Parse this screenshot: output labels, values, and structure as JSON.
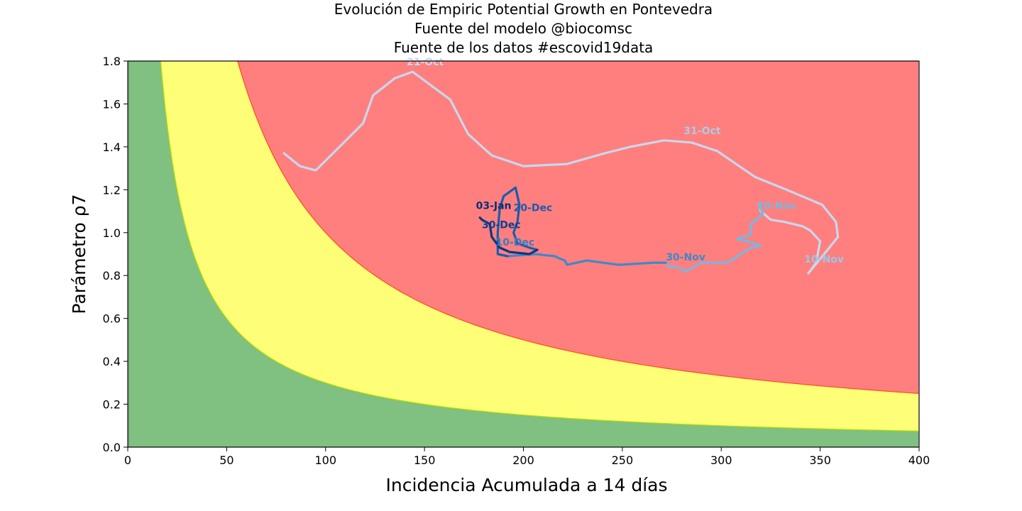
{
  "chart_data": {
    "type": "line",
    "title_lines": [
      "Evolución de Empiric Potential Growth en Pontevedra",
      "Fuente del modelo @biocomsc",
      "Fuente de los datos #escovid19data"
    ],
    "xlabel": "Incidencia Acumulada a 14 días",
    "ylabel": "Parámetro ρ7",
    "xlim": [
      0,
      400
    ],
    "ylim": [
      0,
      1.8
    ],
    "xticks": [
      0,
      50,
      100,
      150,
      200,
      250,
      300,
      350,
      400
    ],
    "yticks": [
      0.0,
      0.2,
      0.4,
      0.6,
      0.8,
      1.0,
      1.2,
      1.4,
      1.6,
      1.8
    ],
    "ytick_labels": [
      "0.0",
      "0.2",
      "0.4",
      "0.6",
      "0.8",
      "1.0",
      "1.2",
      "1.4",
      "1.6",
      "1.8"
    ],
    "grid": false,
    "zones": [
      {
        "color": "#80c080",
        "k": 0
      },
      {
        "color": "#ffff77",
        "k": 30
      },
      {
        "color": "#ff7f7f",
        "k": 100
      }
    ],
    "zone_edges": [
      "#b8e000",
      "#ff4a20"
    ],
    "segments": [
      {
        "color": "#c8d8ec",
        "points": [
          [
            79,
            1.37
          ],
          [
            87,
            1.31
          ],
          [
            95,
            1.29
          ],
          [
            107,
            1.4
          ],
          [
            119,
            1.51
          ],
          [
            124,
            1.64
          ],
          [
            135,
            1.72
          ],
          [
            144,
            1.75
          ],
          [
            163,
            1.62
          ],
          [
            172,
            1.46
          ],
          [
            184,
            1.36
          ],
          [
            200,
            1.31
          ],
          [
            222,
            1.32
          ],
          [
            241,
            1.37
          ],
          [
            254,
            1.4
          ],
          [
            271,
            1.43
          ],
          [
            285,
            1.42
          ],
          [
            298,
            1.38
          ],
          [
            317,
            1.26
          ],
          [
            333,
            1.2
          ],
          [
            351,
            1.13
          ],
          [
            358,
            1.05
          ],
          [
            359,
            0.98
          ],
          [
            352,
            0.9
          ],
          [
            344,
            0.81
          ],
          [
            348,
            0.86
          ],
          [
            350,
            0.96
          ],
          [
            345,
            1.01
          ],
          [
            341,
            1.03
          ],
          [
            332,
            1.05
          ],
          [
            325,
            1.06
          ],
          [
            320,
            1.1
          ],
          [
            319,
            1.13
          ]
        ]
      },
      {
        "color": "#7ab6e0",
        "points": [
          [
            319,
            1.13
          ],
          [
            321,
            1.09
          ],
          [
            318,
            1.06
          ],
          [
            315,
            1.04
          ],
          [
            315,
            0.99
          ],
          [
            308,
            0.97
          ],
          [
            313,
            0.96
          ],
          [
            320,
            0.94
          ],
          [
            315,
            0.93
          ],
          [
            303,
            0.86
          ],
          [
            290,
            0.86
          ],
          [
            282,
            0.82
          ],
          [
            278,
            0.84
          ],
          [
            274,
            0.84
          ],
          [
            272,
            0.86
          ]
        ]
      },
      {
        "color": "#4088c8",
        "points": [
          [
            272,
            0.86
          ],
          [
            266,
            0.86
          ],
          [
            248,
            0.85
          ],
          [
            232,
            0.87
          ],
          [
            222,
            0.85
          ],
          [
            221,
            0.87
          ],
          [
            218,
            0.88
          ],
          [
            216,
            0.89
          ],
          [
            206,
            0.9
          ],
          [
            192,
            0.89
          ]
        ]
      },
      {
        "color": "#1c5cac",
        "points": [
          [
            192,
            0.89
          ],
          [
            187,
            0.9
          ],
          [
            187,
            1.0
          ],
          [
            188,
            1.11
          ],
          [
            190,
            1.17
          ],
          [
            196,
            1.21
          ],
          [
            198,
            1.13
          ],
          [
            197,
            1.05
          ],
          [
            195,
            1.0
          ],
          [
            197,
            0.95
          ],
          [
            203,
            0.93
          ],
          [
            207,
            0.92
          ]
        ]
      },
      {
        "color": "#0a3880",
        "points": [
          [
            207,
            0.92
          ],
          [
            203,
            0.9
          ],
          [
            193,
            0.91
          ],
          [
            188,
            0.93
          ],
          [
            184,
            0.98
          ],
          [
            183,
            1.04
          ],
          [
            179,
            1.06
          ],
          [
            178,
            1.07
          ]
        ]
      }
    ],
    "annotations": [
      {
        "text": "21-Oct",
        "x": 141,
        "y": 1.78,
        "color": "#c8d8ec"
      },
      {
        "text": "31-Oct",
        "x": 281,
        "y": 1.46,
        "color": "#aacbe6"
      },
      {
        "text": "10-Nov",
        "x": 342,
        "y": 0.86,
        "color": "#9cc6e6"
      },
      {
        "text": "20-Nov",
        "x": 318,
        "y": 1.11,
        "color": "#7ab6e0"
      },
      {
        "text": "30-Nov",
        "x": 272,
        "y": 0.87,
        "color": "#4088c8"
      },
      {
        "text": "10-Dec",
        "x": 186,
        "y": 0.94,
        "color": "#3a7cc0"
      },
      {
        "text": "20-Dec",
        "x": 195,
        "y": 1.1,
        "color": "#1c5cac"
      },
      {
        "text": "30-Dec",
        "x": 179,
        "y": 1.02,
        "color": "#0e3f90"
      },
      {
        "text": "03-Jan",
        "x": 176,
        "y": 1.11,
        "color": "#0a2f74"
      }
    ]
  }
}
